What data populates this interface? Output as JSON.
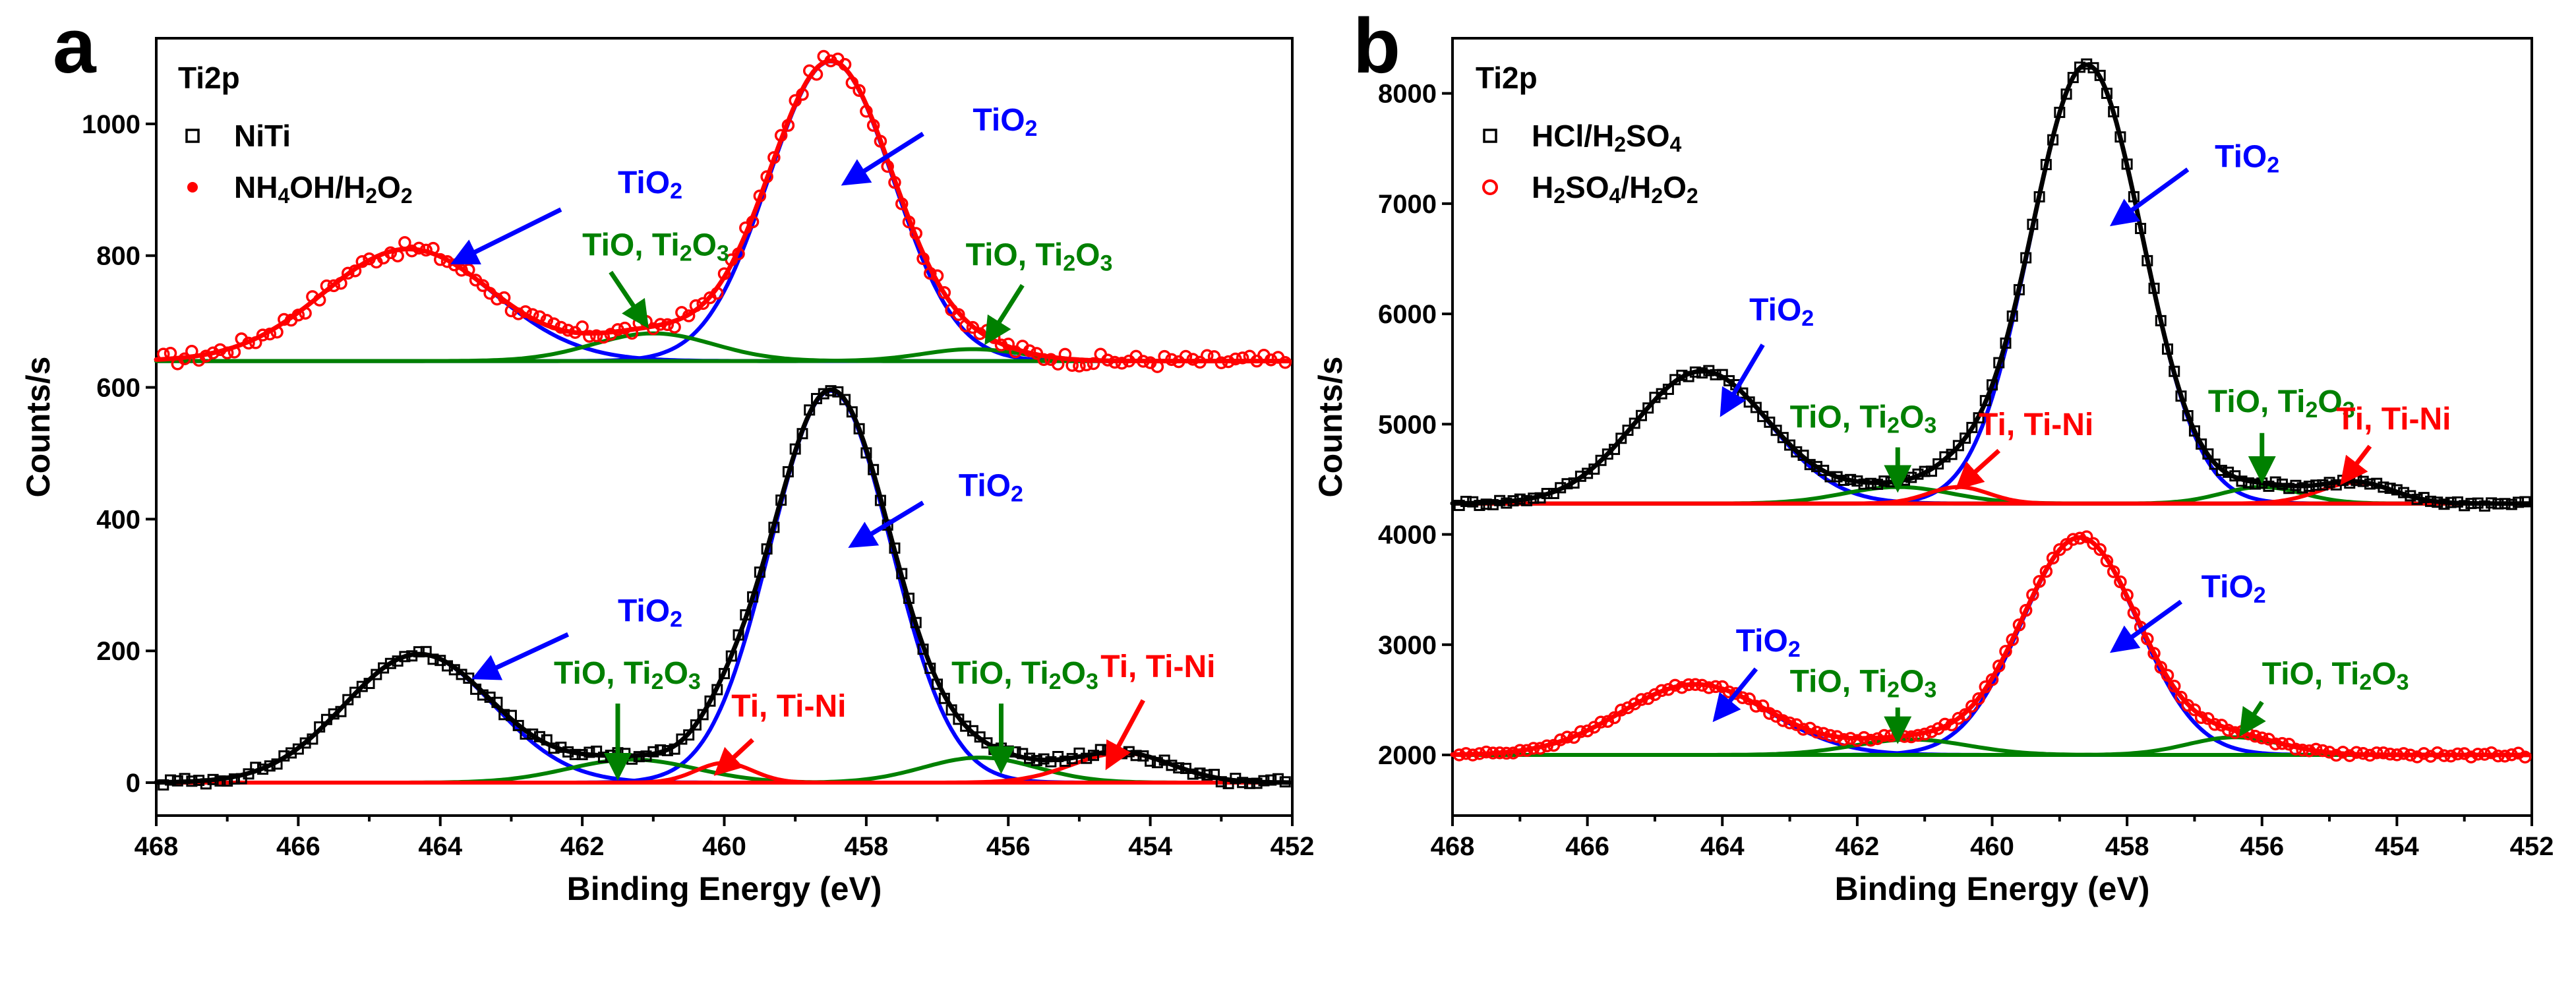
{
  "chart_data": [
    {
      "type": "scatter",
      "panel_label": "a",
      "title": "Ti2p",
      "xlabel": "Binding Energy (eV)",
      "ylabel": "Counts/s",
      "xlim": [
        468,
        452
      ],
      "ylim": [
        -50,
        1130
      ],
      "x_ticks": [
        468,
        466,
        464,
        462,
        460,
        458,
        456,
        454,
        452
      ],
      "y_ticks": [
        0,
        200,
        400,
        600,
        800,
        1000
      ],
      "divider_y": 640,
      "legend": [
        {
          "label": "NiTi",
          "marker": "open-square",
          "color": "#000000"
        },
        {
          "label": "NH4OH/H2O2",
          "label_main": "NH",
          "sub1": "4",
          "label_mid": "OH/H",
          "sub2": "2",
          "label_mid2": "O",
          "sub3": "2",
          "marker": "filled-circle",
          "color": "#ff0000"
        }
      ],
      "series": [
        {
          "name": "NH4OH/H2O2 spectrum",
          "baseline": 640,
          "noise": 10,
          "marker": "open-circle",
          "color": "#ff0000",
          "peaks": [
            {
              "center": 458.5,
              "amplitude": 455,
              "sigma": 0.88
            },
            {
              "center": 464.45,
              "amplitude": 170,
              "sigma": 1.2
            },
            {
              "center": 461.0,
              "amplitude": 42,
              "sigma": 0.85
            },
            {
              "center": 456.5,
              "amplitude": 18,
              "sigma": 0.7
            }
          ],
          "components": [
            {
              "role": "TiO2",
              "color": "#0000ff",
              "peaks": [
                {
                  "center": 458.5,
                  "amplitude": 455,
                  "sigma": 0.88
                }
              ]
            },
            {
              "role": "TiO2",
              "color": "#0000ff",
              "peaks": [
                {
                  "center": 464.45,
                  "amplitude": 170,
                  "sigma": 1.2
                }
              ]
            },
            {
              "role": "TiO, Ti2O3",
              "color": "#008000",
              "peaks": [
                {
                  "center": 461.0,
                  "amplitude": 42,
                  "sigma": 0.85
                }
              ]
            },
            {
              "role": "TiO, Ti2O3",
              "color": "#008000",
              "peaks": [
                {
                  "center": 456.5,
                  "amplitude": 18,
                  "sigma": 0.7
                }
              ]
            }
          ],
          "fit_color": "#ff0000"
        },
        {
          "name": "NiTi spectrum",
          "baseline": 0,
          "noise": 6,
          "marker": "open-square",
          "color": "#000000",
          "peaks": [
            {
              "center": 458.5,
              "amplitude": 595,
              "sigma": 0.85
            },
            {
              "center": 464.3,
              "amplitude": 195,
              "sigma": 1.05
            },
            {
              "center": 461.3,
              "amplitude": 35,
              "sigma": 0.9
            },
            {
              "center": 460.0,
              "amplitude": 30,
              "sigma": 0.4
            },
            {
              "center": 456.4,
              "amplitude": 38,
              "sigma": 0.8
            },
            {
              "center": 454.4,
              "amplitude": 45,
              "sigma": 0.7
            }
          ],
          "components": [
            {
              "role": "TiO2",
              "color": "#0000ff",
              "peaks": [
                {
                  "center": 458.5,
                  "amplitude": 595,
                  "sigma": 0.85
                }
              ]
            },
            {
              "role": "TiO2",
              "color": "#0000ff",
              "peaks": [
                {
                  "center": 464.3,
                  "amplitude": 195,
                  "sigma": 1.05
                }
              ]
            },
            {
              "role": "TiO, Ti2O3",
              "color": "#008000",
              "peaks": [
                {
                  "center": 461.3,
                  "amplitude": 35,
                  "sigma": 0.9
                }
              ]
            },
            {
              "role": "TiO, Ti2O3",
              "color": "#008000",
              "peaks": [
                {
                  "center": 456.4,
                  "amplitude": 38,
                  "sigma": 0.8
                }
              ]
            },
            {
              "role": "Ti, Ti-Ni",
              "color": "#ff0000",
              "peaks": [
                {
                  "center": 460.0,
                  "amplitude": 30,
                  "sigma": 0.4
                }
              ]
            },
            {
              "role": "Ti, Ti-Ni",
              "color": "#ff0000",
              "peaks": [
                {
                  "center": 454.4,
                  "amplitude": 45,
                  "sigma": 0.7
                }
              ]
            }
          ],
          "fit_color": "#000000"
        }
      ],
      "annotations": [
        {
          "color": "#0000ff",
          "main": "TiO",
          "sub": "2",
          "tail": "",
          "tx": 456.5,
          "ty": 990,
          "ax0": 457.2,
          "ay0": 985,
          "ax1": 458.3,
          "ay1": 910
        },
        {
          "color": "#0000ff",
          "main": "TiO",
          "sub": "2",
          "tail": "",
          "tx": 461.5,
          "ty": 895,
          "ax0": 462.3,
          "ay0": 870,
          "ax1": 463.8,
          "ay1": 790
        },
        {
          "color": "#008000",
          "main": "TiO, Ti",
          "sub": "2",
          "tail": "O",
          "sub2": "3",
          "tx": 462.0,
          "ty": 800,
          "ax0": 461.6,
          "ay0": 775,
          "ax1": 461.1,
          "ay1": 695
        },
        {
          "color": "#008000",
          "main": "TiO, Ti",
          "sub": "2",
          "tail": "O",
          "sub2": "3",
          "tx": 456.6,
          "ty": 785,
          "ax0": 455.8,
          "ay0": 755,
          "ax1": 456.3,
          "ay1": 670
        },
        {
          "color": "#0000ff",
          "main": "TiO",
          "sub": "2",
          "tail": "",
          "tx": 456.7,
          "ty": 435,
          "ax0": 457.2,
          "ay0": 425,
          "ax1": 458.2,
          "ay1": 360
        },
        {
          "color": "#0000ff",
          "main": "TiO",
          "sub": "2",
          "tail": "",
          "tx": 461.5,
          "ty": 245,
          "ax0": 462.2,
          "ay0": 225,
          "ax1": 463.5,
          "ay1": 160
        },
        {
          "color": "#008000",
          "main": "TiO, Ti",
          "sub": "2",
          "tail": "O",
          "sub2": "3",
          "tx": 462.4,
          "ty": 150,
          "ax0": 461.5,
          "ay0": 120,
          "ax1": 461.5,
          "ay1": 10
        },
        {
          "color": "#ff0000",
          "main": "Ti, Ti-Ni",
          "sub": "",
          "tail": "",
          "tx": 459.9,
          "ty": 100,
          "ax0": 459.6,
          "ay0": 65,
          "ax1": 460.1,
          "ay1": 15
        },
        {
          "color": "#008000",
          "main": "TiO, Ti",
          "sub": "2",
          "tail": "O",
          "sub2": "3",
          "tx": 456.8,
          "ty": 150,
          "ax0": 456.1,
          "ay0": 120,
          "ax1": 456.1,
          "ay1": 20
        },
        {
          "color": "#ff0000",
          "main": "Ti, Ti-Ni",
          "sub": "",
          "tail": "",
          "tx": 454.7,
          "ty": 160,
          "ax0": 454.1,
          "ay0": 125,
          "ax1": 454.6,
          "ay1": 25
        }
      ]
    },
    {
      "type": "scatter",
      "panel_label": "b",
      "title": "Ti2p",
      "xlabel": "Binding Energy (eV)",
      "ylabel": "Counts/s",
      "xlim": [
        468,
        452
      ],
      "ylim": [
        1450,
        8500
      ],
      "x_ticks": [
        468,
        466,
        464,
        462,
        460,
        458,
        456,
        454,
        452
      ],
      "y_ticks": [
        2000,
        3000,
        4000,
        5000,
        6000,
        7000,
        8000
      ],
      "divider_y": 4280,
      "legend": [
        {
          "label": "HCl/H2SO4",
          "label_main": "HCl/H",
          "sub1": "2",
          "label_mid": "SO",
          "sub2": "4",
          "label_mid2": "",
          "sub3": "",
          "marker": "open-square",
          "color": "#000000"
        },
        {
          "label": "H2SO4/H2O2",
          "label_main": "H",
          "sub1": "2",
          "label_mid": "SO",
          "sub2": "4",
          "label_mid2": "/H",
          "sub3": "2",
          "label_tail": "O",
          "sub4": "2",
          "marker": "open-circle",
          "color": "#ff0000"
        }
      ],
      "series": [
        {
          "name": "HCl/H2SO4 spectrum",
          "baseline": 4280,
          "noise": 25,
          "marker": "open-square",
          "color": "#000000",
          "peaks": [
            {
              "center": 458.6,
              "amplitude": 3980,
              "sigma": 0.83
            },
            {
              "center": 464.3,
              "amplitude": 1200,
              "sigma": 1.0
            },
            {
              "center": 461.4,
              "amplitude": 150,
              "sigma": 0.8
            },
            {
              "center": 460.5,
              "amplitude": 150,
              "sigma": 0.45
            },
            {
              "center": 456.0,
              "amplitude": 150,
              "sigma": 0.6
            },
            {
              "center": 454.6,
              "amplitude": 190,
              "sigma": 0.55
            }
          ],
          "components": [
            {
              "role": "TiO2",
              "color": "#0000ff",
              "peaks": [
                {
                  "center": 458.6,
                  "amplitude": 3980,
                  "sigma": 0.83
                }
              ]
            },
            {
              "role": "TiO2",
              "color": "#0000ff",
              "peaks": [
                {
                  "center": 464.3,
                  "amplitude": 1200,
                  "sigma": 1.0
                }
              ]
            },
            {
              "role": "TiO, Ti2O3",
              "color": "#008000",
              "peaks": [
                {
                  "center": 461.4,
                  "amplitude": 150,
                  "sigma": 0.8
                }
              ]
            },
            {
              "role": "TiO, Ti2O3",
              "color": "#008000",
              "peaks": [
                {
                  "center": 456.0,
                  "amplitude": 150,
                  "sigma": 0.6
                }
              ]
            },
            {
              "role": "Ti, Ti-Ni",
              "color": "#ff0000",
              "peaks": [
                {
                  "center": 460.5,
                  "amplitude": 150,
                  "sigma": 0.45
                }
              ]
            },
            {
              "role": "Ti, Ti-Ni",
              "color": "#ff0000",
              "peaks": [
                {
                  "center": 454.6,
                  "amplitude": 190,
                  "sigma": 0.55
                }
              ]
            }
          ],
          "fit_color": "#000000"
        },
        {
          "name": "H2SO4/H2O2 spectrum",
          "baseline": 2000,
          "noise": 20,
          "marker": "open-circle",
          "color": "#ff0000",
          "peaks": [
            {
              "center": 458.7,
              "amplitude": 1970,
              "sigma": 0.87
            },
            {
              "center": 464.4,
              "amplitude": 640,
              "sigma": 1.1
            },
            {
              "center": 461.2,
              "amplitude": 140,
              "sigma": 0.85
            },
            {
              "center": 456.4,
              "amplitude": 160,
              "sigma": 0.7
            }
          ],
          "components": [
            {
              "role": "TiO2",
              "color": "#0000ff",
              "peaks": [
                {
                  "center": 458.7,
                  "amplitude": 1970,
                  "sigma": 0.87
                }
              ]
            },
            {
              "role": "TiO2",
              "color": "#0000ff",
              "peaks": [
                {
                  "center": 464.4,
                  "amplitude": 640,
                  "sigma": 1.1
                }
              ]
            },
            {
              "role": "TiO, Ti2O3",
              "color": "#008000",
              "peaks": [
                {
                  "center": 461.2,
                  "amplitude": 140,
                  "sigma": 0.85
                }
              ]
            },
            {
              "role": "TiO, Ti2O3",
              "color": "#008000",
              "peaks": [
                {
                  "center": 456.4,
                  "amplitude": 160,
                  "sigma": 0.7
                }
              ]
            }
          ],
          "fit_color": "#ff0000"
        }
      ],
      "annotations": [
        {
          "color": "#0000ff",
          "main": "TiO",
          "sub": "2",
          "tail": "",
          "tx": 456.7,
          "ty": 7330,
          "ax0": 457.1,
          "ay0": 7310,
          "ax1": 458.2,
          "ay1": 6820
        },
        {
          "color": "#0000ff",
          "main": "TiO",
          "sub": "2",
          "tail": "",
          "tx": 463.6,
          "ty": 5940,
          "ax0": 463.4,
          "ay0": 5720,
          "ax1": 464.0,
          "ay1": 5100
        },
        {
          "color": "#008000",
          "main": "TiO, Ti",
          "sub": "2",
          "tail": "O",
          "sub2": "3",
          "tx": 463.0,
          "ty": 4970,
          "ax0": 461.4,
          "ay0": 4790,
          "ax1": 461.4,
          "ay1": 4420
        },
        {
          "color": "#ff0000",
          "main": "Ti, Ti-Ni",
          "sub": "",
          "tail": "",
          "tx": 460.2,
          "ty": 4900,
          "ax0": 459.9,
          "ay0": 4760,
          "ax1": 460.5,
          "ay1": 4430
        },
        {
          "color": "#008000",
          "main": "TiO, Ti",
          "sub": "2",
          "tail": "O",
          "sub2": "3",
          "tx": 456.8,
          "ty": 5110,
          "ax0": 456.0,
          "ay0": 4920,
          "ax1": 456.0,
          "ay1": 4500
        },
        {
          "color": "#ff0000",
          "main": "Ti, Ti-Ni",
          "sub": "",
          "tail": "",
          "tx": 454.9,
          "ty": 4950,
          "ax0": 454.4,
          "ay0": 4800,
          "ax1": 454.8,
          "ay1": 4480
        },
        {
          "color": "#0000ff",
          "main": "TiO",
          "sub": "2",
          "tail": "",
          "tx": 456.9,
          "ty": 3430,
          "ax0": 457.2,
          "ay0": 3390,
          "ax1": 458.2,
          "ay1": 2950
        },
        {
          "color": "#0000ff",
          "main": "TiO",
          "sub": "2",
          "tail": "",
          "tx": 463.8,
          "ty": 2940,
          "ax0": 463.5,
          "ay0": 2780,
          "ax1": 464.1,
          "ay1": 2330
        },
        {
          "color": "#008000",
          "main": "TiO, Ti",
          "sub": "2",
          "tail": "O",
          "sub2": "3",
          "tx": 463.0,
          "ty": 2570,
          "ax0": 461.4,
          "ay0": 2430,
          "ax1": 461.4,
          "ay1": 2140
        },
        {
          "color": "#008000",
          "main": "TiO, Ti",
          "sub": "2",
          "tail": "O",
          "sub2": "3",
          "tx": 456.0,
          "ty": 2640,
          "ax0": 456.0,
          "ay0": 2480,
          "ax1": 456.3,
          "ay1": 2200
        }
      ]
    }
  ]
}
